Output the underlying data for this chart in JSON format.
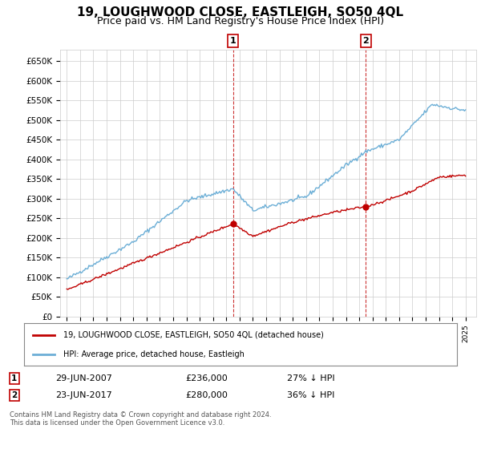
{
  "title": "19, LOUGHWOOD CLOSE, EASTLEIGH, SO50 4QL",
  "subtitle": "Price paid vs. HM Land Registry's House Price Index (HPI)",
  "title_fontsize": 11,
  "subtitle_fontsize": 9,
  "ylim": [
    0,
    680000
  ],
  "yticks": [
    0,
    50000,
    100000,
    150000,
    200000,
    250000,
    300000,
    350000,
    400000,
    450000,
    500000,
    550000,
    600000,
    650000
  ],
  "ytick_labels": [
    "£0",
    "£50K",
    "£100K",
    "£150K",
    "£200K",
    "£250K",
    "£300K",
    "£350K",
    "£400K",
    "£450K",
    "£500K",
    "£550K",
    "£600K",
    "£650K"
  ],
  "hpi_color": "#6baed6",
  "price_color": "#c00000",
  "sale1_x": 2007.5,
  "sale2_x": 2017.5,
  "sale1_price": 236000,
  "sale2_price": 280000,
  "sale1_date": "29-JUN-2007",
  "sale2_date": "23-JUN-2017",
  "sale1_pct": "27% ↓ HPI",
  "sale2_pct": "36% ↓ HPI",
  "legend1": "19, LOUGHWOOD CLOSE, EASTLEIGH, SO50 4QL (detached house)",
  "legend2": "HPI: Average price, detached house, Eastleigh",
  "footnote": "Contains HM Land Registry data © Crown copyright and database right 2024.\nThis data is licensed under the Open Government Licence v3.0.",
  "background_color": "#ffffff",
  "grid_color": "#cccccc",
  "xlim_left": 1994.5,
  "xlim_right": 2025.8
}
